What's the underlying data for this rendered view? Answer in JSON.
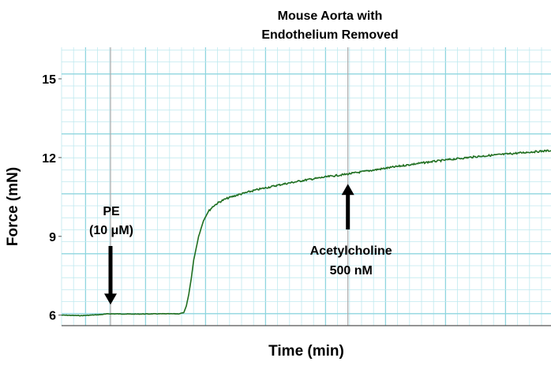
{
  "chart_data": {
    "type": "line",
    "title_lines": [
      "Mouse Aorta with",
      "Endothelium Removed"
    ],
    "xlabel": "Time (min)",
    "ylabel": "Force (mN)",
    "ylim": [
      5.6,
      16.2
    ],
    "yticks": [
      6,
      9,
      12,
      15
    ],
    "x_range": [
      0,
      100
    ],
    "grid": true,
    "series": [
      {
        "color": "#1f6e1f",
        "x": [
          0,
          4,
          8,
          9.5,
          15,
          20,
          24,
          25,
          25.5,
          26,
          26.5,
          27,
          28,
          29,
          30,
          31,
          32,
          33,
          34,
          36,
          38,
          40,
          45,
          50,
          55,
          58,
          60,
          65,
          70,
          75,
          80,
          85,
          90,
          95,
          100
        ],
        "y": [
          6.0,
          5.98,
          6.02,
          6.05,
          6.04,
          6.05,
          6.05,
          6.1,
          6.35,
          6.8,
          7.4,
          8.1,
          9.0,
          9.6,
          9.95,
          10.15,
          10.28,
          10.38,
          10.46,
          10.58,
          10.68,
          10.78,
          10.98,
          11.15,
          11.29,
          11.36,
          11.42,
          11.56,
          11.7,
          11.83,
          11.94,
          12.04,
          12.12,
          12.2,
          12.27
        ]
      }
    ],
    "annotations": [
      {
        "lines": [
          "PE",
          "(10 μM)"
        ],
        "arrow": "down",
        "x": 10,
        "y_tip": 6.25
      },
      {
        "lines": [
          "Acetylcholine",
          "500 nM"
        ],
        "arrow": "up",
        "x": 58.5,
        "y_tip": 11.6
      }
    ]
  },
  "colors": {
    "grid_minor": "#bfe9ef",
    "grid_major": "#8fd6df",
    "marker_line": "#aaaaaa",
    "axis": "#555555"
  }
}
